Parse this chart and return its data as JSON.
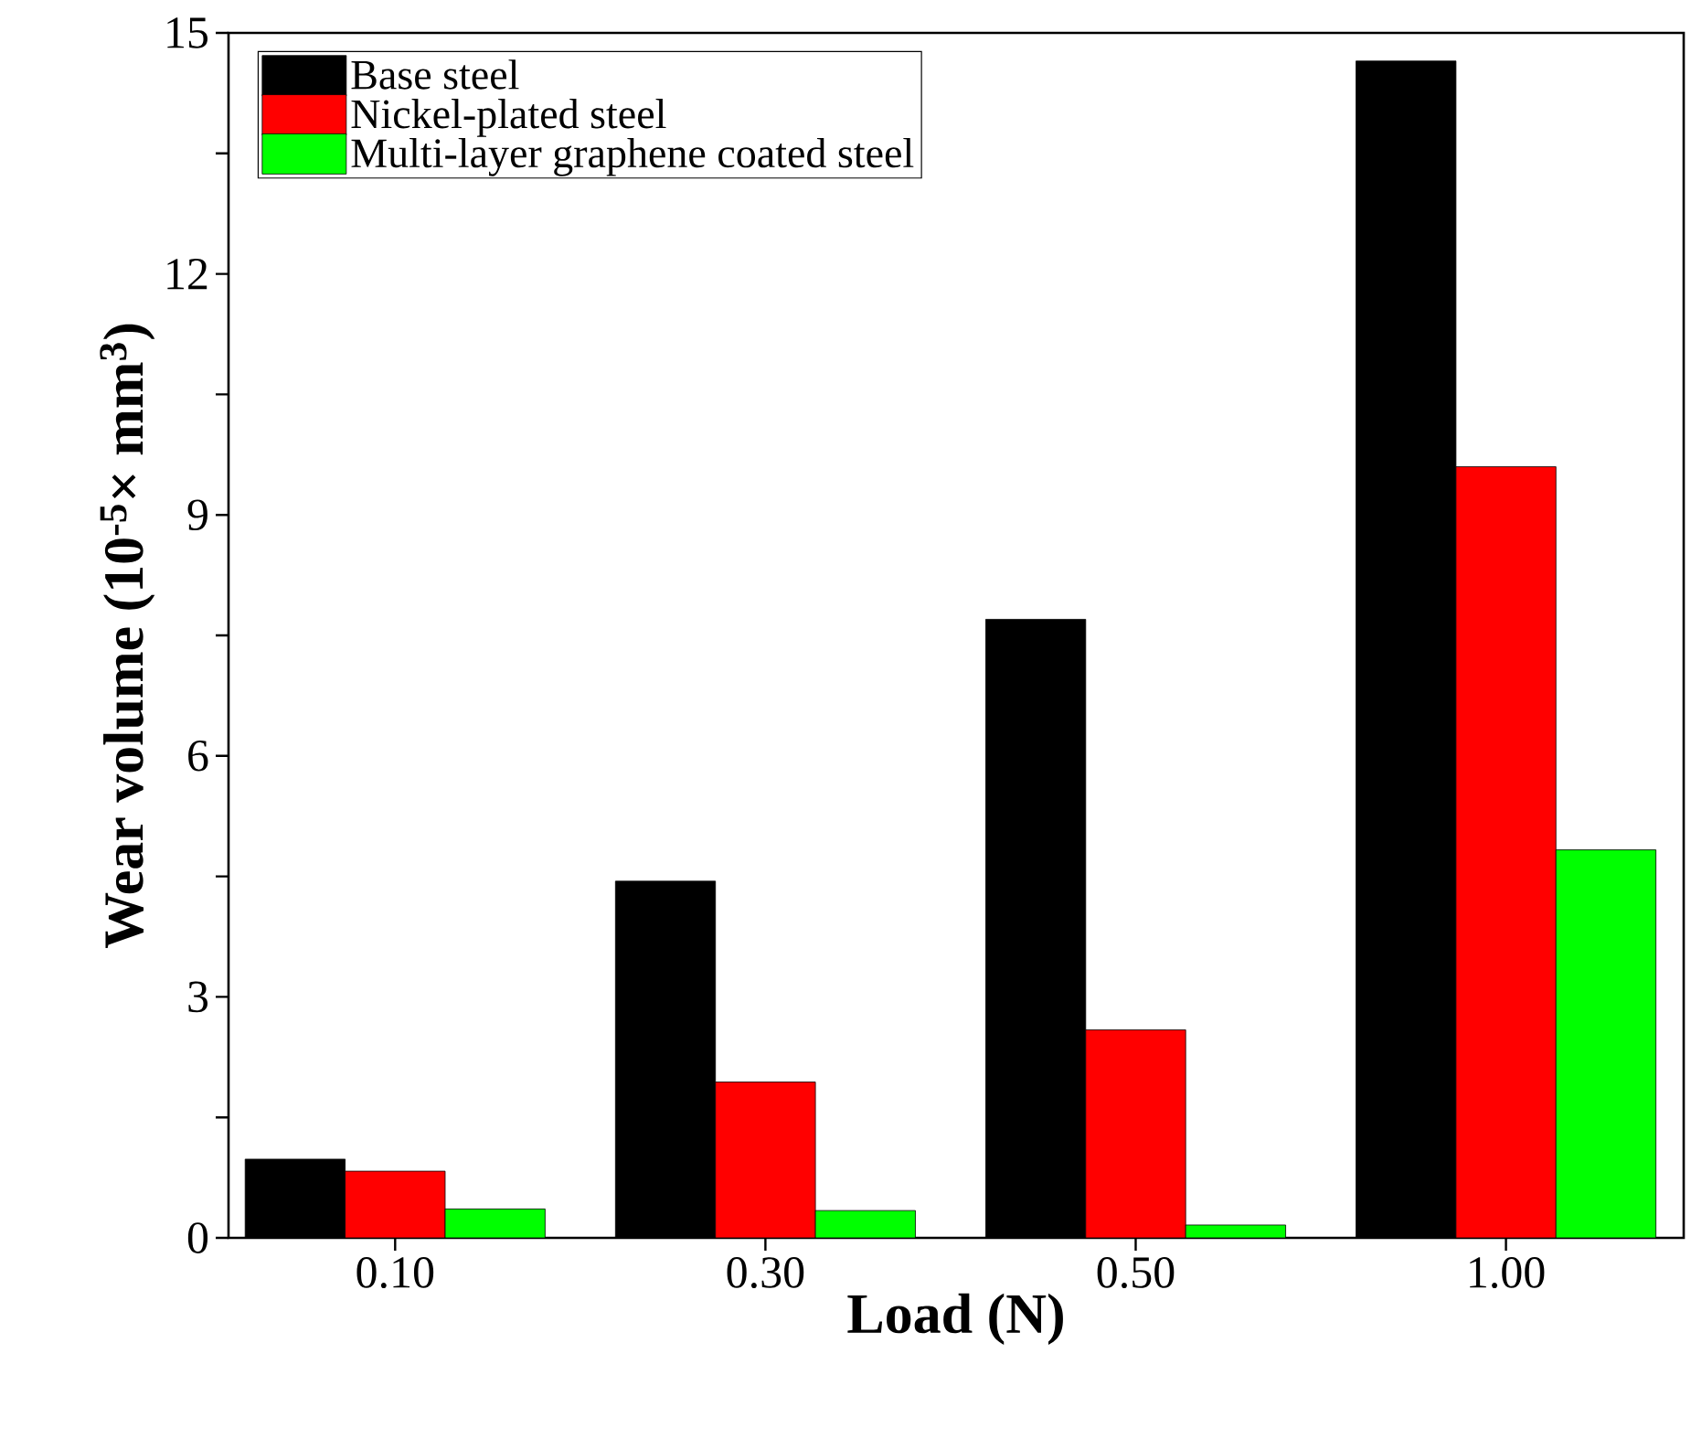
{
  "chart_data": {
    "type": "bar",
    "xlabel": "Load (N)",
    "ylabel": "Wear volume (10$^{-5}$× mm$^{3}$)",
    "categories": [
      "0.10",
      "0.30",
      "0.50",
      "1.00"
    ],
    "series": [
      {
        "name": "Base steel",
        "color": "#000000",
        "values": [
          0.98,
          4.44,
          7.7,
          14.65
        ]
      },
      {
        "name": "Nickel-plated steel",
        "color": "#ff0000",
        "values": [
          0.83,
          1.94,
          2.59,
          9.6
        ]
      },
      {
        "name": "Multi-layer graphene coated steel",
        "color": "#00ff00",
        "values": [
          0.36,
          0.34,
          0.16,
          4.83
        ]
      }
    ],
    "ylim": [
      0,
      15
    ],
    "yticks": [
      0,
      {
        "value": 1.5,
        "label": null
      },
      3,
      {
        "value": 4.5,
        "label": null
      },
      6,
      {
        "value": 7.5,
        "label": null
      },
      9,
      {
        "value": 10.5,
        "label": null
      },
      12,
      {
        "value": 13.5,
        "label": null
      },
      15
    ],
    "legend": "top left"
  }
}
